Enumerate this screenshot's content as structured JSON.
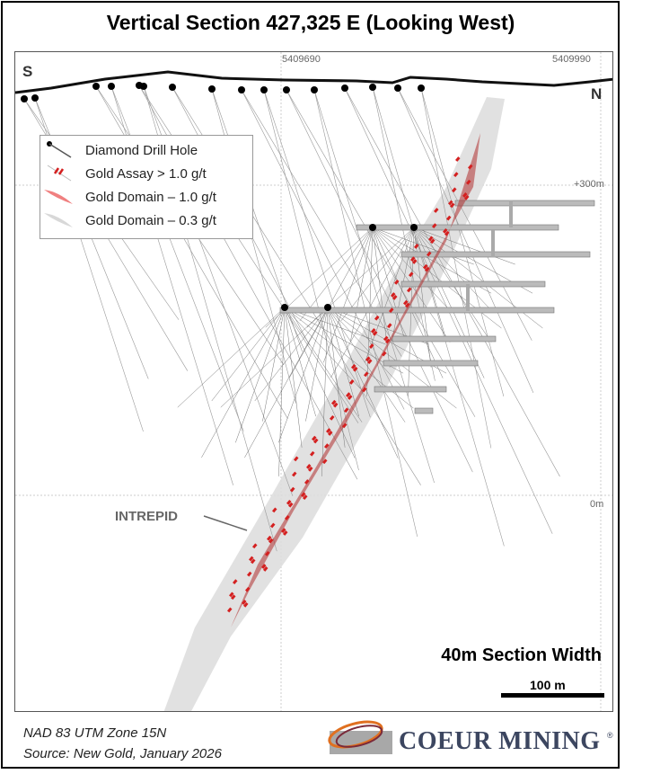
{
  "title": "Vertical Section 427,325 E (Looking West)",
  "map": {
    "direction_left": "S",
    "direction_right": "N",
    "northing_labels": [
      "5409690",
      "5409990"
    ],
    "elevation_labels": [
      "+300m",
      "0m"
    ],
    "zone_label": "INTREPID",
    "section_width": "40m Section Width",
    "scale_label": "100 m"
  },
  "legend": {
    "items": [
      {
        "label": "Diamond Drill Hole",
        "icon": "drill-hole-icon"
      },
      {
        "label": "Gold Assay > 1.0 g/t",
        "icon": "gold-assay-icon",
        "color": "#d42020"
      },
      {
        "label": "Gold Domain – 1.0 g/t",
        "icon": "gold-domain-high-icon",
        "color": "#f08080"
      },
      {
        "label": "Gold Domain – 0.3 g/t",
        "icon": "gold-domain-low-icon",
        "color": "#d8d8d8"
      }
    ]
  },
  "footer": {
    "datum": "NAD 83 UTM Zone 15N",
    "source": "Source: New Gold, January 2026"
  },
  "logo": {
    "text": "COEUR MINING",
    "mark": "®"
  }
}
